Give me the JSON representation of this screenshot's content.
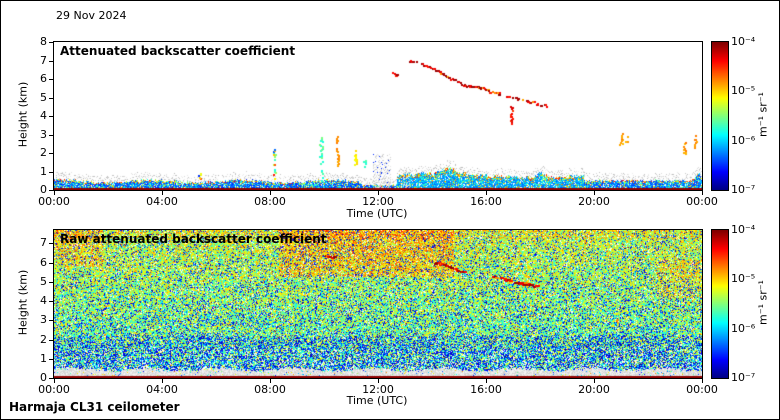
{
  "meta": {
    "date_label": "29 Nov 2024",
    "footer": "Harmaja CL31 ceilometer"
  },
  "colorbar": {
    "unit": "m⁻¹ sr⁻¹",
    "colormap": "jet",
    "tick_labels": [
      "10⁻⁴",
      "10⁻⁵",
      "10⁻⁶",
      "10⁻⁷"
    ],
    "tick_exponents": [
      -4,
      -5,
      -6,
      -7
    ],
    "log10_range": [
      -7,
      -4
    ]
  },
  "chart_data": [
    {
      "type": "heatmap",
      "title": "Attenuated backscatter coefficient",
      "xlabel": "Time (UTC)",
      "ylabel": "Height (km)",
      "x_tick_labels": [
        "00:00",
        "04:00",
        "08:00",
        "12:00",
        "16:00",
        "20:00",
        "00:00"
      ],
      "x_tick_hours": [
        0,
        4,
        8,
        12,
        16,
        20,
        24
      ],
      "x_range_hours": [
        0,
        24
      ],
      "y_tick_values": [
        0,
        1,
        2,
        3,
        4,
        5,
        6,
        7,
        8
      ],
      "y_range_km": [
        0,
        8
      ],
      "background": "white-no-signal",
      "boundary_layer": {
        "surface_line": "dark-red",
        "mean_top_km_00_11": 0.45,
        "mean_top_km_11_13": 0.25,
        "mean_top_km_13_19": 0.8,
        "mean_top_km_19_24": 0.5
      },
      "cloud_streaks_km": [
        {
          "t0": 13.55,
          "h0": 6.85,
          "t1": 14.1,
          "h1": 6.55
        },
        {
          "t0": 14.1,
          "h0": 6.5,
          "t1": 15.1,
          "h1": 5.75
        },
        {
          "t0": 15.15,
          "h0": 5.7,
          "t1": 16.0,
          "h1": 5.45
        },
        {
          "t0": 16.0,
          "h0": 5.4,
          "t1": 16.6,
          "h1": 5.15
        },
        {
          "t0": 16.75,
          "h0": 5.1,
          "t1": 17.4,
          "h1": 4.85
        },
        {
          "t0": 17.5,
          "h0": 4.8,
          "t1": 18.3,
          "h1": 4.55
        },
        {
          "t0": 13.15,
          "h0": 7.0,
          "t1": 13.45,
          "h1": 6.9
        },
        {
          "t0": 12.55,
          "h0": 6.3,
          "t1": 12.75,
          "h1": 6.2
        }
      ],
      "vertical_features": [
        {
          "t": 5.4,
          "h0": 0.6,
          "h1": 1.0,
          "color": "multi",
          "density": 0.3
        },
        {
          "t": 8.15,
          "h0": 0.5,
          "h1": 2.3,
          "color": "multi",
          "density": 0.4
        },
        {
          "t": 9.9,
          "h0": 0.4,
          "h1": 2.95,
          "color": "green",
          "density": 0.5
        },
        {
          "t": 10.5,
          "h0": 1.3,
          "h1": 2.9,
          "color": "orange",
          "density": 0.45
        },
        {
          "t": 11.15,
          "h0": 1.4,
          "h1": 2.3,
          "color": "yellow",
          "density": 0.55
        },
        {
          "t": 11.5,
          "h0": 1.2,
          "h1": 1.7,
          "color": "green",
          "density": 0.5
        },
        {
          "t": 16.95,
          "h0": 3.5,
          "h1": 4.5,
          "color": "red",
          "density": 0.5
        },
        {
          "t": 21.0,
          "h0": 2.4,
          "h1": 3.05,
          "color": "orange",
          "density": 0.5
        },
        {
          "t": 21.2,
          "h0": 2.6,
          "h1": 2.9,
          "color": "orange",
          "density": 0.4
        },
        {
          "t": 23.35,
          "h0": 2.0,
          "h1": 2.6,
          "color": "orange",
          "density": 0.5
        },
        {
          "t": 23.75,
          "h0": 2.3,
          "h1": 3.0,
          "color": "orange",
          "density": 0.5
        }
      ],
      "gray_columns": [
        {
          "t0": 11.85,
          "t1": 12.45,
          "top_km": 1.95
        },
        {
          "t0": 12.95,
          "t1": 13.15,
          "top_km": 1.25
        }
      ]
    },
    {
      "type": "heatmap",
      "title": "Raw attenuated backscatter coefficient",
      "xlabel": "Time (UTC)",
      "ylabel": "Height (km)",
      "x_tick_labels": [
        "00:00",
        "04:00",
        "08:00",
        "12:00",
        "16:00",
        "20:00",
        "00:00"
      ],
      "x_tick_hours": [
        0,
        4,
        8,
        12,
        16,
        20,
        24
      ],
      "x_range_hours": [
        0,
        24
      ],
      "y_tick_values": [
        0,
        1,
        2,
        3,
        4,
        5,
        6,
        7
      ],
      "y_range_km": [
        0,
        7.7
      ],
      "background": "full-field-speckle-noise",
      "surface_band": {
        "top_km": 0.45,
        "color": "white-gray",
        "surface_line": "dark-red"
      },
      "warm_patches": [
        {
          "t0": 8.3,
          "t1": 14.8,
          "h0": 5.3,
          "h1": 7.7,
          "boost": 0.28
        },
        {
          "t0": 0,
          "t1": 1.8,
          "h0": 5.8,
          "h1": 7.7,
          "boost": 0.22
        },
        {
          "t0": 22.3,
          "t1": 24,
          "h0": 4.2,
          "h1": 6.2,
          "boost": 0.18
        }
      ],
      "cloud_streaks_km": [
        {
          "t0": 14.05,
          "h0": 6.05,
          "t1": 15.2,
          "h1": 5.5
        },
        {
          "t0": 16.25,
          "h0": 5.3,
          "t1": 17.05,
          "h1": 5.0
        },
        {
          "t0": 17.15,
          "h0": 4.95,
          "t1": 17.95,
          "h1": 4.8
        },
        {
          "t0": 10.05,
          "h0": 6.35,
          "t1": 10.35,
          "h1": 6.28
        }
      ],
      "vertical_features": [
        {
          "t": 20.9,
          "h0": 2.85,
          "h1": 3.15,
          "color": "orange",
          "density": 0.8
        }
      ]
    }
  ]
}
